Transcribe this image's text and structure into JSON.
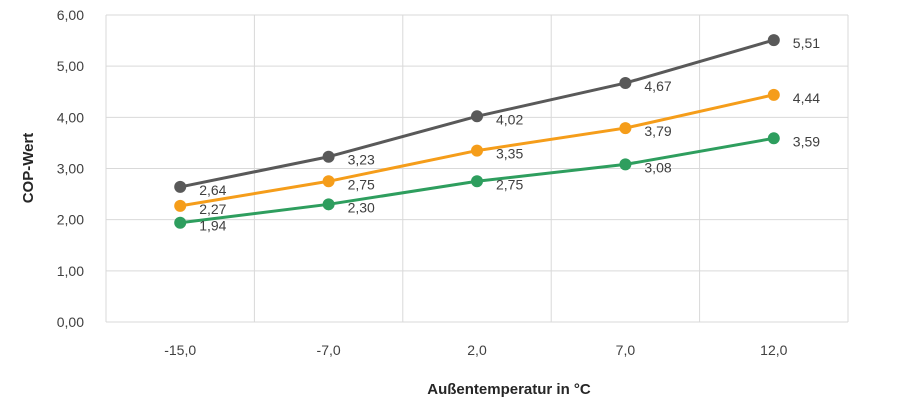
{
  "chart_data": {
    "type": "line",
    "title": "",
    "xlabel": "Außentemperatur in °C",
    "ylabel": "COP-Wert",
    "categories": [
      "-15,0",
      "-7,0",
      "2,0",
      "7,0",
      "12,0"
    ],
    "ylim": [
      0,
      6
    ],
    "yticks": [
      "0,00",
      "1,00",
      "2,00",
      "3,00",
      "4,00",
      "5,00",
      "6,00"
    ],
    "grid": true,
    "legend": "none",
    "series": [
      {
        "color": "#595959",
        "values": [
          2.64,
          3.23,
          4.02,
          4.67,
          5.51
        ],
        "labels": [
          "2,64",
          "3,23",
          "4,02",
          "4,67",
          "5,51"
        ]
      },
      {
        "color": "#f59d1a",
        "values": [
          2.27,
          2.75,
          3.35,
          3.79,
          4.44
        ],
        "labels": [
          "2,27",
          "2,75",
          "3,35",
          "3,79",
          "4,44"
        ]
      },
      {
        "color": "#2e9e5e",
        "values": [
          1.94,
          2.3,
          2.75,
          3.08,
          3.59
        ],
        "labels": [
          "1,94",
          "2,30",
          "2,75",
          "3,08",
          "3,59"
        ]
      }
    ]
  }
}
